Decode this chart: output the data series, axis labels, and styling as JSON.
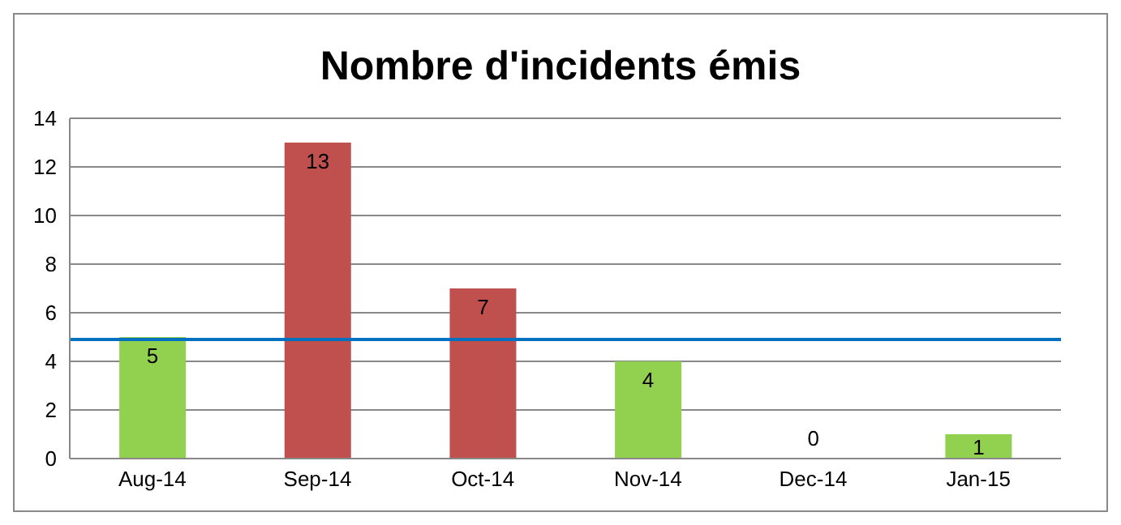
{
  "chart_data": {
    "type": "bar",
    "title": "Nombre d'incidents émis",
    "categories": [
      "Aug-14",
      "Sep-14",
      "Oct-14",
      "Nov-14",
      "Dec-14",
      "Jan-15"
    ],
    "values": [
      5,
      13,
      7,
      4,
      0,
      1
    ],
    "colors": [
      "#92d050",
      "#c0504d",
      "#c0504d",
      "#92d050",
      "#92d050",
      "#92d050"
    ],
    "ylim": [
      0,
      14
    ],
    "yticks": [
      0,
      2,
      4,
      6,
      8,
      10,
      12,
      14
    ],
    "grid": "y",
    "data_labels": true,
    "legend": false,
    "ref_lines": [
      {
        "axis": "y",
        "value": 4.9,
        "color": "#0070c0"
      }
    ]
  }
}
